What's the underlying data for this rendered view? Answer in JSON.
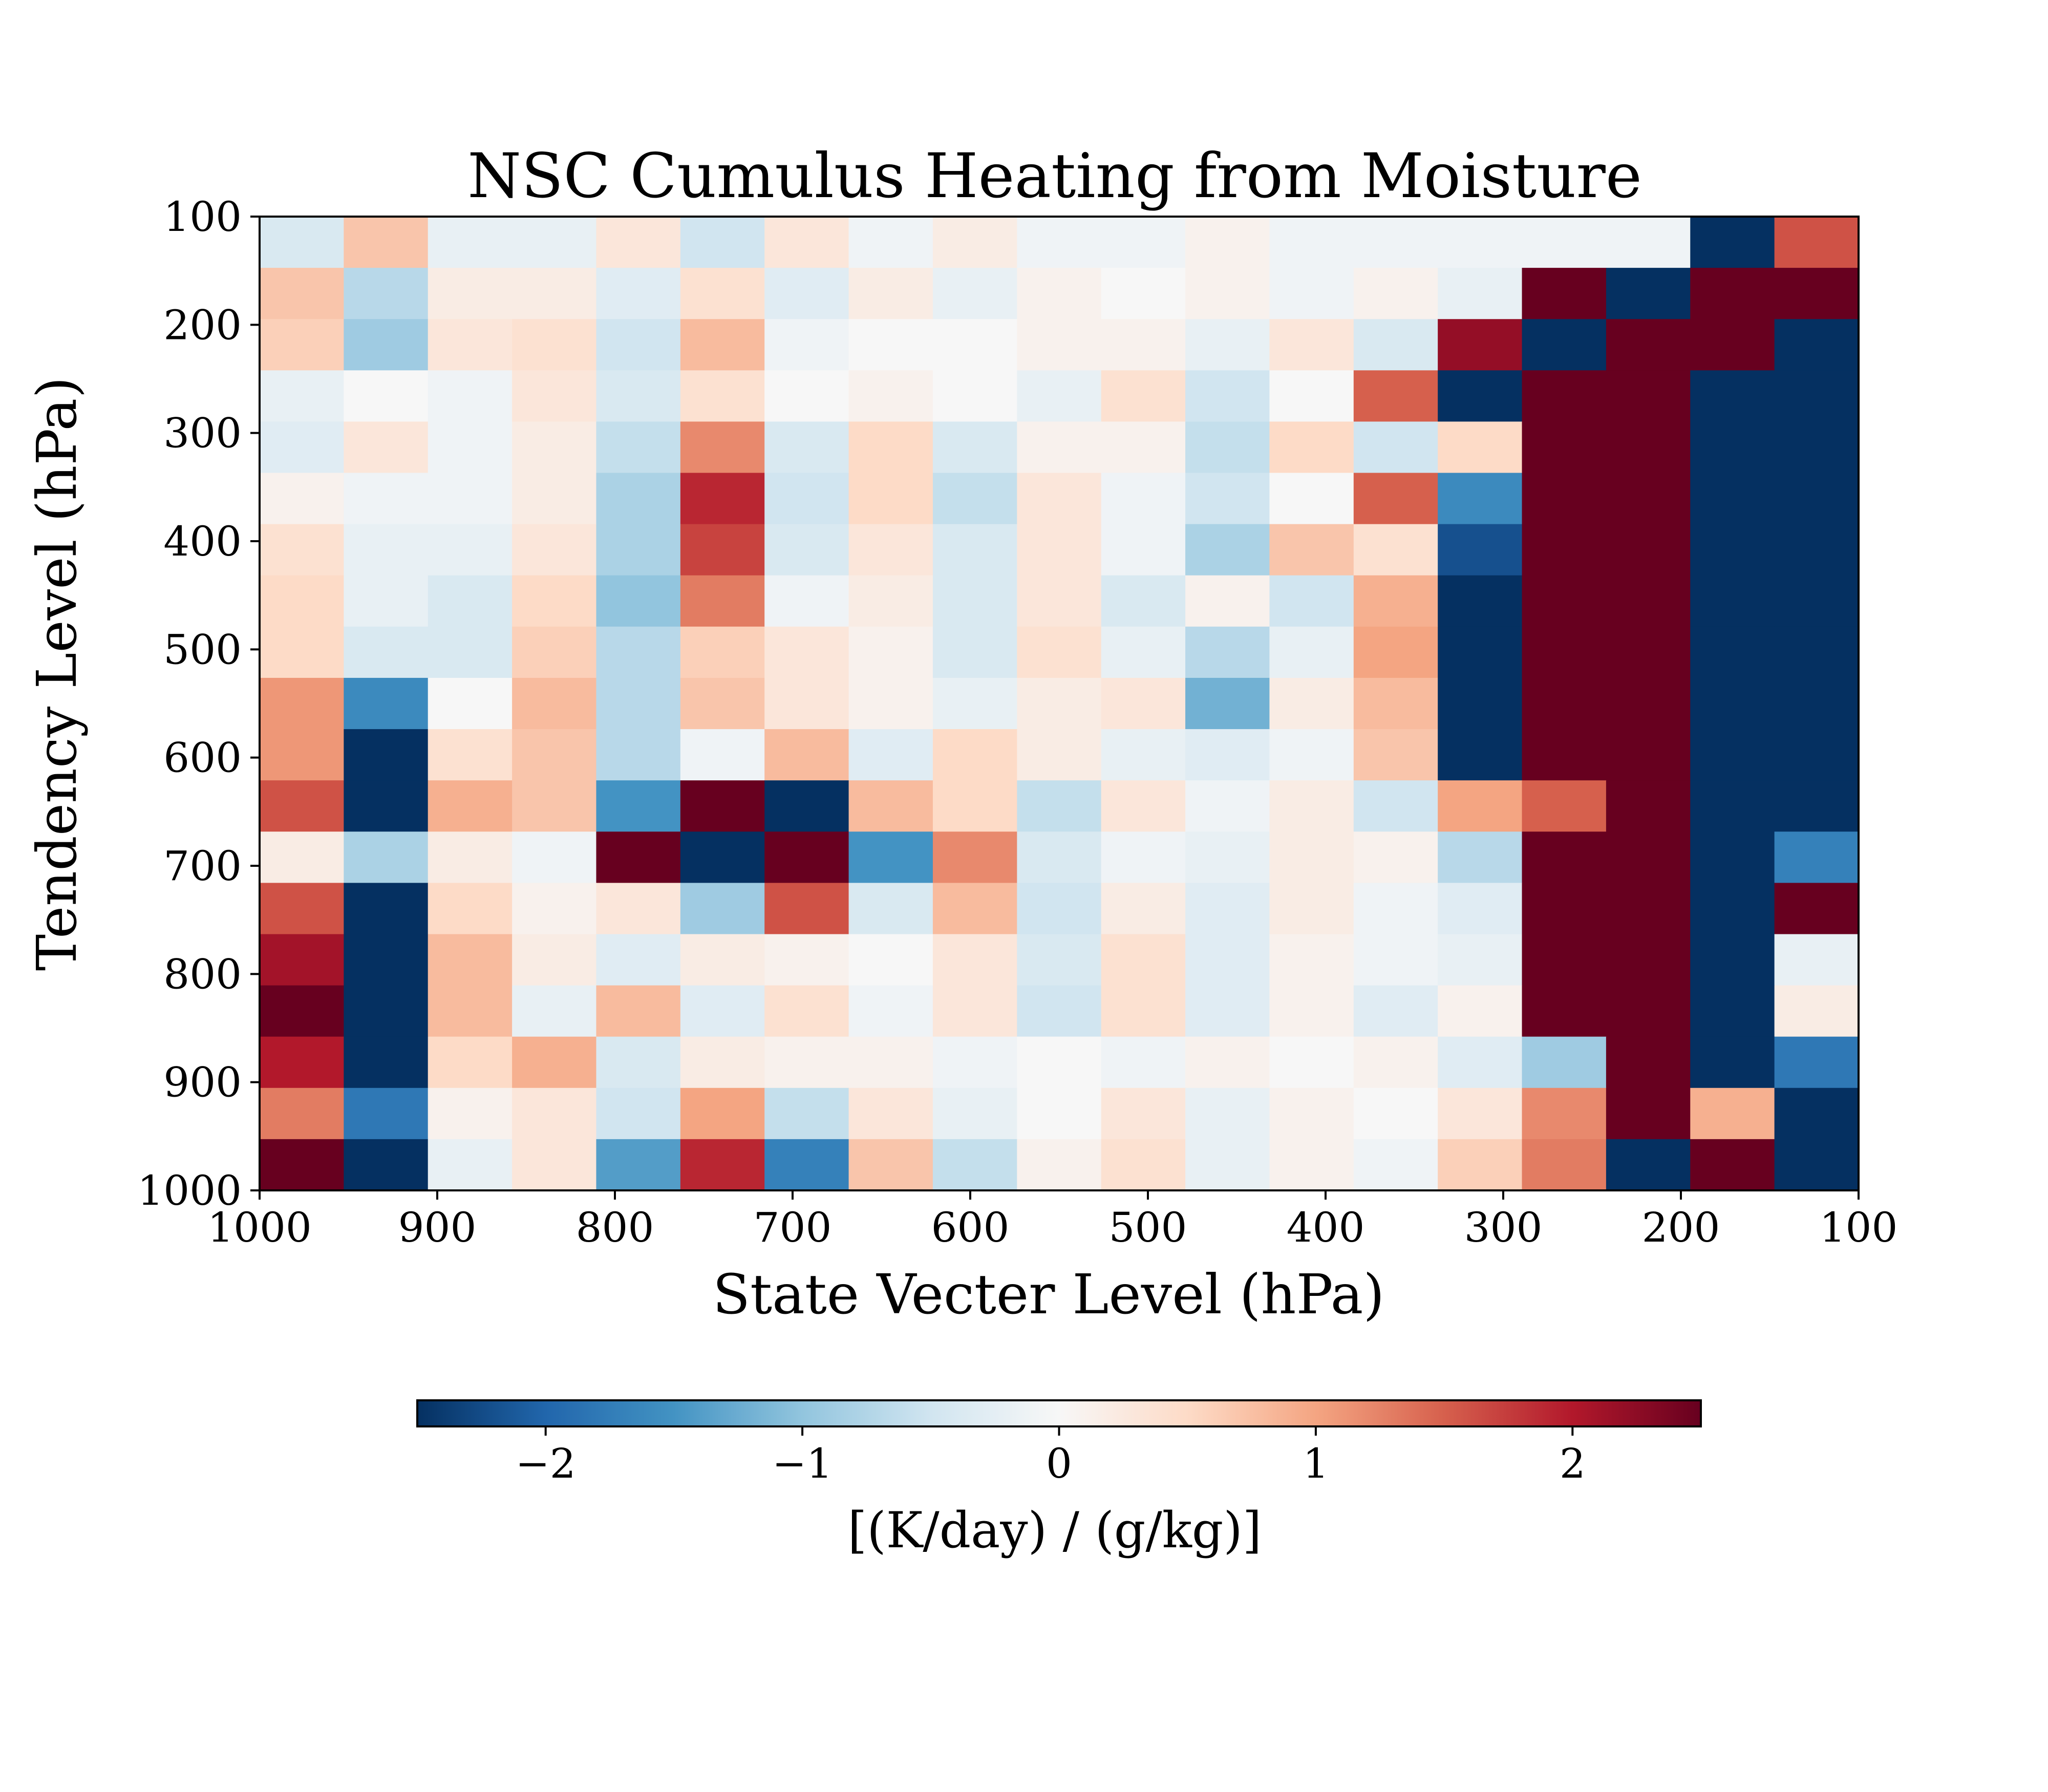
{
  "chart_data": {
    "type": "heatmap",
    "title": "NSC Cumulus Heating from Moisture",
    "xlabel": "State Vecter Level (hPa)",
    "ylabel": "Tendency Level (hPa)",
    "x_ticks": [
      "1000",
      "900",
      "800",
      "700",
      "600",
      "500",
      "400",
      "300",
      "200",
      "100"
    ],
    "y_ticks": [
      "100",
      "200",
      "300",
      "400",
      "500",
      "600",
      "700",
      "800",
      "900",
      "1000"
    ],
    "x_range": [
      1000,
      100
    ],
    "y_range": [
      100,
      1000
    ],
    "x_centers": [
      1000,
      950,
      900,
      850,
      800,
      750,
      700,
      650,
      600,
      550,
      500,
      450,
      400,
      350,
      300,
      250,
      200,
      150,
      100
    ],
    "y_centers": [
      100,
      150,
      200,
      250,
      300,
      350,
      400,
      450,
      500,
      550,
      600,
      650,
      700,
      750,
      800,
      850,
      900,
      950,
      1000
    ],
    "colormap": "RdBu_r",
    "vmin": -2.5,
    "vmax": 2.5,
    "colorbar_label": "[(K/day) / (g/kg)]",
    "colorbar_ticks": [
      "−2",
      "−1",
      "0",
      "1",
      "2"
    ],
    "colorbar_tick_values": [
      -2,
      -1,
      0,
      1,
      2
    ],
    "grid": false,
    "values": [
      [
        -0.4,
        0.7,
        -0.2,
        -0.2,
        0.3,
        -0.5,
        0.3,
        -0.1,
        0.2,
        -0.1,
        -0.1,
        0.1,
        -0.1,
        -0.1,
        -0.1,
        -0.1,
        -0.1,
        -3.0,
        1.6
      ],
      [
        0.7,
        -0.7,
        0.2,
        0.2,
        -0.3,
        0.4,
        -0.3,
        0.2,
        -0.2,
        0.1,
        0.0,
        0.1,
        -0.1,
        0.1,
        -0.2,
        3.0,
        -3.0,
        3.0,
        3.0
      ],
      [
        0.6,
        -0.9,
        0.3,
        0.4,
        -0.5,
        0.8,
        -0.1,
        0.0,
        0.0,
        0.1,
        0.1,
        -0.2,
        0.3,
        -0.4,
        2.2,
        -3.0,
        3.0,
        3.0,
        -3.0
      ],
      [
        -0.2,
        0.0,
        -0.1,
        0.3,
        -0.4,
        0.4,
        0.0,
        0.1,
        0.0,
        -0.2,
        0.4,
        -0.5,
        0.0,
        1.5,
        -3.0,
        3.0,
        3.0,
        -3.0,
        -3.0
      ],
      [
        -0.3,
        0.3,
        -0.1,
        0.2,
        -0.6,
        1.2,
        -0.4,
        0.5,
        -0.4,
        0.1,
        0.1,
        -0.6,
        0.5,
        -0.5,
        0.5,
        3.0,
        3.0,
        -3.0,
        -3.0
      ],
      [
        0.1,
        -0.1,
        -0.1,
        0.2,
        -0.8,
        1.9,
        -0.5,
        0.5,
        -0.6,
        0.3,
        -0.1,
        -0.5,
        0.0,
        1.5,
        -1.6,
        3.0,
        3.0,
        -3.0,
        -3.0
      ],
      [
        0.4,
        -0.2,
        -0.2,
        0.3,
        -0.8,
        1.7,
        -0.4,
        0.3,
        -0.4,
        0.3,
        -0.1,
        -0.8,
        0.7,
        0.4,
        -2.2,
        3.0,
        3.0,
        -3.0,
        -3.0
      ],
      [
        0.5,
        -0.2,
        -0.4,
        0.5,
        -1.0,
        1.3,
        -0.1,
        0.2,
        -0.4,
        0.3,
        -0.4,
        0.1,
        -0.5,
        0.9,
        -3.0,
        3.0,
        3.0,
        -3.0,
        -3.0
      ],
      [
        0.5,
        -0.4,
        -0.4,
        0.6,
        -0.7,
        0.6,
        0.3,
        0.1,
        -0.4,
        0.4,
        -0.2,
        -0.7,
        -0.2,
        1.0,
        -3.0,
        3.0,
        3.0,
        -3.0,
        -3.0
      ],
      [
        1.1,
        -1.6,
        0.0,
        0.8,
        -0.7,
        0.7,
        0.3,
        0.1,
        -0.2,
        0.2,
        0.3,
        -1.2,
        0.2,
        0.8,
        -3.0,
        3.0,
        3.0,
        -3.0,
        -3.0
      ],
      [
        1.1,
        -3.0,
        0.4,
        0.7,
        -0.7,
        -0.1,
        0.8,
        -0.3,
        0.5,
        0.2,
        -0.2,
        -0.3,
        -0.1,
        0.7,
        -3.0,
        3.0,
        3.0,
        -3.0,
        -3.0
      ],
      [
        1.6,
        -3.0,
        0.9,
        0.7,
        -1.5,
        3.0,
        -3.0,
        0.8,
        0.5,
        -0.6,
        0.3,
        -0.1,
        0.2,
        -0.5,
        1.0,
        1.5,
        3.0,
        -3.0,
        -3.0
      ],
      [
        0.2,
        -0.8,
        0.2,
        -0.1,
        3.0,
        -3.0,
        3.0,
        -1.5,
        1.2,
        -0.4,
        -0.1,
        -0.2,
        0.2,
        0.1,
        -0.7,
        3.0,
        3.0,
        -3.0,
        -1.7
      ],
      [
        1.6,
        -3.0,
        0.5,
        0.1,
        0.3,
        -0.9,
        1.6,
        -0.4,
        0.8,
        -0.5,
        0.2,
        -0.3,
        0.2,
        -0.1,
        -0.3,
        3.0,
        3.0,
        -3.0,
        3.0
      ],
      [
        2.1,
        -3.0,
        0.8,
        0.2,
        -0.3,
        0.2,
        0.1,
        0.0,
        0.3,
        -0.4,
        0.4,
        -0.3,
        0.1,
        -0.1,
        -0.2,
        3.0,
        3.0,
        -3.0,
        -0.2
      ],
      [
        3.0,
        -3.0,
        0.8,
        -0.2,
        0.8,
        -0.3,
        0.4,
        -0.1,
        0.3,
        -0.5,
        0.4,
        -0.3,
        0.1,
        -0.3,
        0.1,
        3.0,
        3.0,
        -3.0,
        0.2
      ],
      [
        2.0,
        -3.0,
        0.5,
        0.9,
        -0.4,
        0.2,
        0.1,
        0.1,
        -0.1,
        0.0,
        -0.1,
        0.1,
        0.0,
        0.1,
        -0.3,
        -0.9,
        3.0,
        -3.0,
        -1.8
      ],
      [
        1.3,
        -1.8,
        0.1,
        0.3,
        -0.5,
        1.0,
        -0.6,
        0.3,
        -0.2,
        0.0,
        0.3,
        -0.2,
        0.1,
        0.0,
        0.3,
        1.2,
        3.0,
        0.9,
        -3.0
      ],
      [
        3.0,
        -3.0,
        -0.2,
        0.3,
        -1.4,
        1.9,
        -1.7,
        0.7,
        -0.6,
        0.1,
        0.4,
        -0.2,
        0.1,
        -0.1,
        0.6,
        1.3,
        -3.0,
        3.0,
        -3.0
      ]
    ]
  }
}
